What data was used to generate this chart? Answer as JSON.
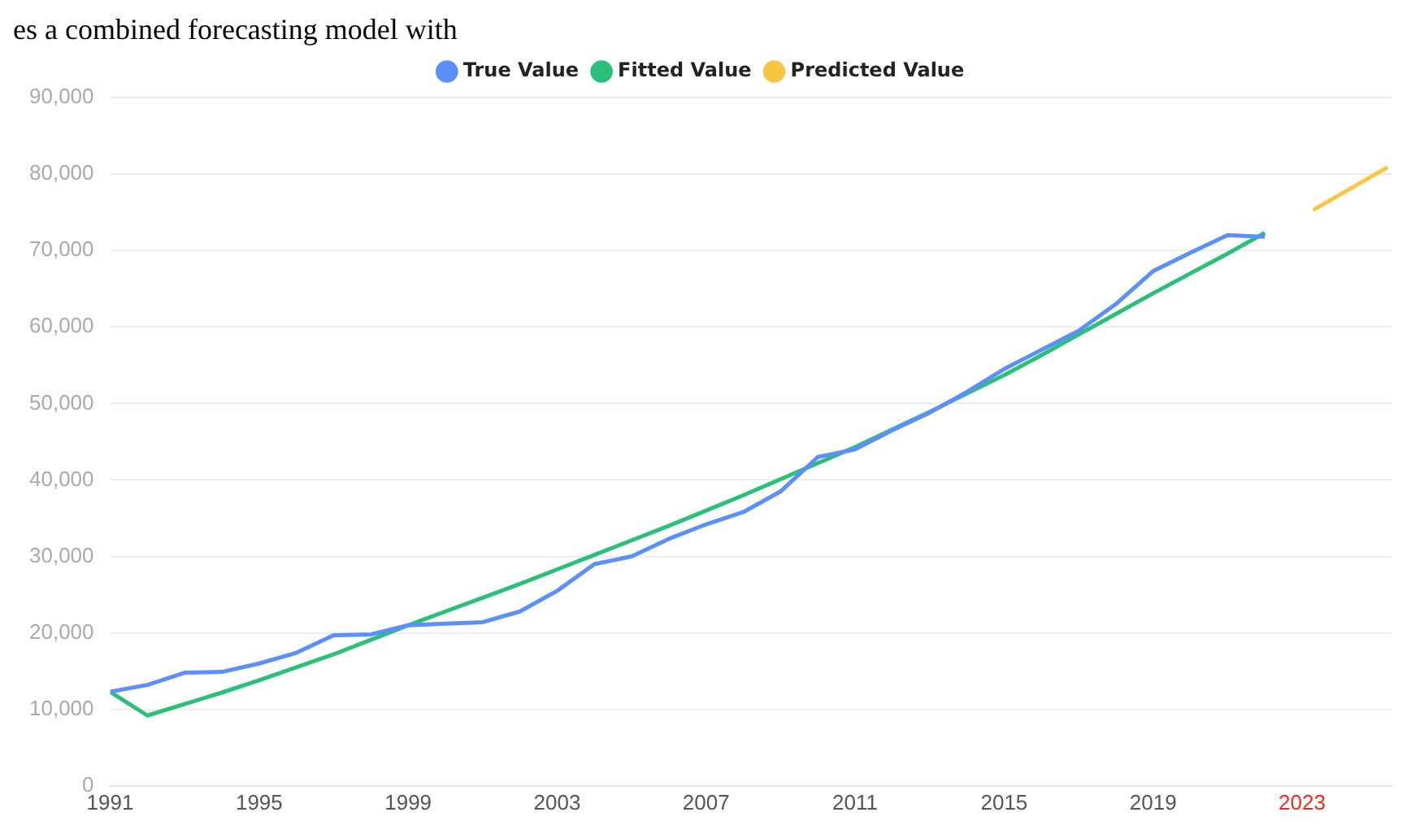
{
  "chart_data": {
    "type": "line",
    "annotations": [
      "es a combined forecasting model with"
    ],
    "xlim": [
      1991,
      2025.4
    ],
    "xticks": [
      1991,
      1995,
      1999,
      2003,
      2007,
      2011,
      2015,
      2019,
      2023
    ],
    "ylim": [
      0,
      90000
    ],
    "yticks": [
      0,
      {
        "value": 10000,
        "label": "10,000"
      },
      {
        "value": 20000,
        "label": "20,000"
      },
      {
        "value": 30000,
        "label": "30,000"
      },
      {
        "value": 40000,
        "label": "40,000"
      },
      {
        "value": 50000,
        "label": "50,000"
      },
      {
        "value": 60000,
        "label": "60,000"
      },
      {
        "value": 70000,
        "label": "70,000"
      },
      {
        "value": 80000,
        "label": "80,000"
      },
      {
        "value": 90000,
        "label": "90,000"
      }
    ],
    "grid": "y",
    "legend": "top",
    "line_style": "solid",
    "marker": "none",
    "series": [
      {
        "name": "True Value",
        "color": "#5b8ff9",
        "x": [
          1991,
          1992,
          1993,
          1994,
          1995,
          1996,
          1997,
          1998,
          1999,
          2000,
          2001,
          2002,
          2003,
          2004,
          2005,
          2006,
          2007,
          2008,
          2009,
          2010,
          2011,
          2012,
          2013,
          2014,
          2015,
          2016,
          2017,
          2018,
          2019,
          2020,
          2021,
          2022
        ],
        "values": [
          12300,
          13200,
          14800,
          14900,
          16000,
          17400,
          19700,
          19800,
          21000,
          21200,
          21400,
          22800,
          25500,
          29000,
          30000,
          32300,
          34200,
          35800,
          38500,
          43000,
          44000,
          46500,
          48800,
          51500,
          54500,
          57000,
          59500,
          63000,
          67300,
          69700,
          72000,
          71800
        ]
      },
      {
        "name": "Fitted Value",
        "color": "#2bbf7a",
        "x": [
          1991,
          1992,
          1993,
          1994,
          1995,
          1996,
          1997,
          1998,
          1999,
          2000,
          2001,
          2002,
          2003,
          2004,
          2005,
          2006,
          2007,
          2008,
          2009,
          2010,
          2011,
          2012,
          2013,
          2014,
          2015,
          2016,
          2017,
          2018,
          2019,
          2020,
          2021,
          2022
        ],
        "values": [
          12300,
          9200,
          10700,
          12200,
          13800,
          15500,
          17200,
          19100,
          21000,
          22800,
          24600,
          26400,
          28300,
          30200,
          32100,
          34000,
          36000,
          38000,
          40100,
          42200,
          44300,
          46600,
          48900,
          51300,
          53700,
          56300,
          59000,
          61700,
          64400,
          67000,
          69600,
          72300
        ]
      },
      {
        "name": "Predicted Value",
        "color": "#f6c744",
        "x": [
          2023.3,
          2025.3
        ],
        "values": [
          75300,
          80900
        ]
      }
    ]
  }
}
